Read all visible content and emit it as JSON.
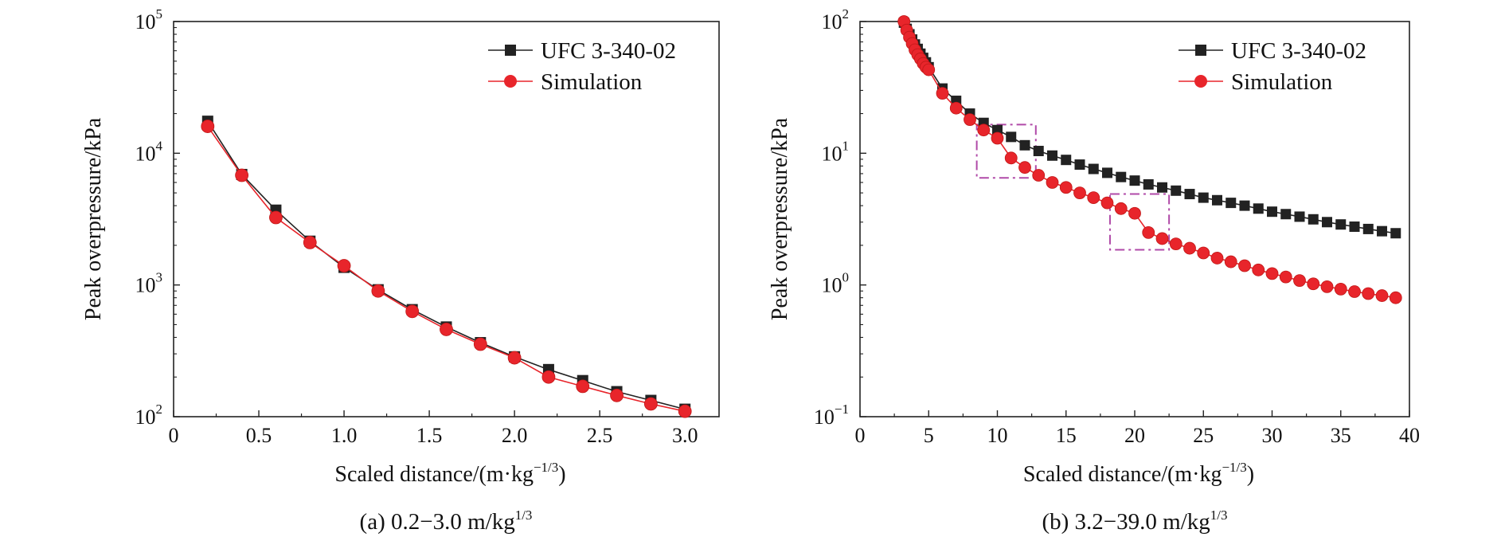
{
  "colors": {
    "ufc": "#222222",
    "simulation": "#e8252b",
    "highlight_box": "#b04aa8",
    "axis": "#222222"
  },
  "legend": {
    "ufc_label": "UFC 3-340-02",
    "simulation_label": "Simulation"
  },
  "chart_data": [
    {
      "type": "line",
      "panel": "a",
      "caption": {
        "main": "(a) 0.2−3.0 m/kg",
        "sup": "1/3"
      },
      "xlabel": {
        "main": "Scaled distance/(m·kg",
        "sup": "−1/3",
        "suffix": ")"
      },
      "ylabel": "Peak overpressure/kPa",
      "xlim": [
        0,
        3.2
      ],
      "ylim": [
        100,
        100000
      ],
      "y_scale": "log",
      "legend_position": "top-right",
      "x_ticks": [
        0,
        0.5,
        1.0,
        1.5,
        2.0,
        2.5,
        3.0
      ],
      "x_tick_labels": [
        "0",
        "0.5",
        "1.0",
        "1.5",
        "2.0",
        "2.5",
        "3.0"
      ],
      "y_ticks": [
        {
          "base": "10",
          "exp": "2",
          "value": 100
        },
        {
          "base": "10",
          "exp": "3",
          "value": 1000
        },
        {
          "base": "10",
          "exp": "4",
          "value": 10000
        },
        {
          "base": "10",
          "exp": "5",
          "value": 100000
        }
      ],
      "x": [
        0.2,
        0.4,
        0.6,
        0.8,
        1.0,
        1.2,
        1.4,
        1.6,
        1.8,
        2.0,
        2.2,
        2.4,
        2.6,
        2.8,
        3.0
      ],
      "series": [
        {
          "name": "UFC 3-340-02",
          "marker": "square",
          "values": [
            17500,
            6900,
            3700,
            2150,
            1360,
            920,
            650,
            480,
            365,
            285,
            228,
            188,
            155,
            133,
            114
          ]
        },
        {
          "name": "Simulation",
          "marker": "circle",
          "values": [
            16000,
            6800,
            3250,
            2100,
            1400,
            900,
            630,
            460,
            355,
            280,
            200,
            170,
            145,
            125,
            110
          ]
        }
      ]
    },
    {
      "type": "line",
      "panel": "b",
      "caption": {
        "main": "(b) 3.2−39.0 m/kg",
        "sup": "1/3"
      },
      "xlabel": {
        "main": "Scaled distance/(m·kg",
        "sup": "−1/3",
        "suffix": ")"
      },
      "ylabel": "Peak overpressure/kPa",
      "xlim": [
        0,
        40
      ],
      "ylim": [
        0.1,
        100
      ],
      "y_scale": "log",
      "legend_position": "top-right",
      "x_ticks": [
        0,
        5,
        10,
        15,
        20,
        25,
        30,
        35,
        40
      ],
      "x_tick_labels": [
        "0",
        "5",
        "10",
        "15",
        "20",
        "25",
        "30",
        "35",
        "40"
      ],
      "y_ticks": [
        {
          "base": "10",
          "exp": "−1",
          "value": 0.1
        },
        {
          "base": "10",
          "exp": "0",
          "value": 1
        },
        {
          "base": "10",
          "exp": "1",
          "value": 10
        },
        {
          "base": "10",
          "exp": "2",
          "value": 100
        }
      ],
      "highlight_regions": [
        {
          "x": [
            8.5,
            12.8
          ],
          "y": [
            6.5,
            16.5
          ]
        },
        {
          "x": [
            18.2,
            22.5
          ],
          "y": [
            1.85,
            4.9
          ]
        }
      ],
      "x_ufc": [
        3.2,
        3.4,
        3.6,
        3.8,
        4.0,
        4.2,
        4.4,
        4.6,
        4.8,
        5.0,
        6.0,
        7.0,
        8.0,
        9.0,
        10.0,
        11.0,
        12.0,
        13.0,
        14.0,
        15.0,
        16.0,
        17.0,
        18.0,
        19.0,
        20.0,
        21.0,
        22.0,
        23.0,
        24.0,
        25.0,
        26.0,
        27.0,
        28.0,
        29.0,
        30.0,
        31.0,
        32.0,
        33.0,
        34.0,
        35.0,
        36.0,
        37.0,
        38.0,
        39.0
      ],
      "x_sim": [
        3.2,
        3.4,
        3.6,
        3.8,
        4.0,
        4.2,
        4.4,
        4.6,
        4.8,
        5.0,
        6.0,
        7.0,
        8.0,
        9.0,
        10.0,
        11.0,
        12.0,
        13.0,
        14.0,
        15.0,
        16.0,
        17.0,
        18.0,
        19.0,
        20.0,
        21.0,
        22.0,
        23.0,
        24.0,
        25.0,
        26.0,
        27.0,
        28.0,
        29.0,
        30.0,
        31.0,
        32.0,
        33.0,
        34.0,
        35.0,
        36.0,
        37.0,
        38.0,
        39.0
      ],
      "series": [
        {
          "name": "UFC 3-340-02",
          "marker": "square",
          "values": [
            98,
            88,
            80,
            73,
            67,
            62,
            57,
            53,
            49,
            45,
            31,
            25,
            20,
            17,
            15,
            13.3,
            11.5,
            10.4,
            9.6,
            8.9,
            8.2,
            7.6,
            7.1,
            6.6,
            6.2,
            5.8,
            5.5,
            5.2,
            4.9,
            4.6,
            4.4,
            4.2,
            4.0,
            3.8,
            3.6,
            3.45,
            3.3,
            3.15,
            3.0,
            2.88,
            2.77,
            2.66,
            2.56,
            2.47
          ]
        },
        {
          "name": "Simulation",
          "marker": "circle",
          "values": [
            100,
            86,
            76,
            68,
            61,
            56,
            52,
            48,
            45,
            43,
            28.5,
            22,
            18,
            15,
            13,
            9.2,
            7.8,
            6.8,
            6.0,
            5.5,
            5.0,
            4.6,
            4.2,
            3.8,
            3.5,
            2.5,
            2.25,
            2.05,
            1.9,
            1.75,
            1.6,
            1.5,
            1.4,
            1.3,
            1.22,
            1.15,
            1.08,
            1.02,
            0.97,
            0.93,
            0.89,
            0.86,
            0.83,
            0.8
          ]
        }
      ]
    }
  ]
}
